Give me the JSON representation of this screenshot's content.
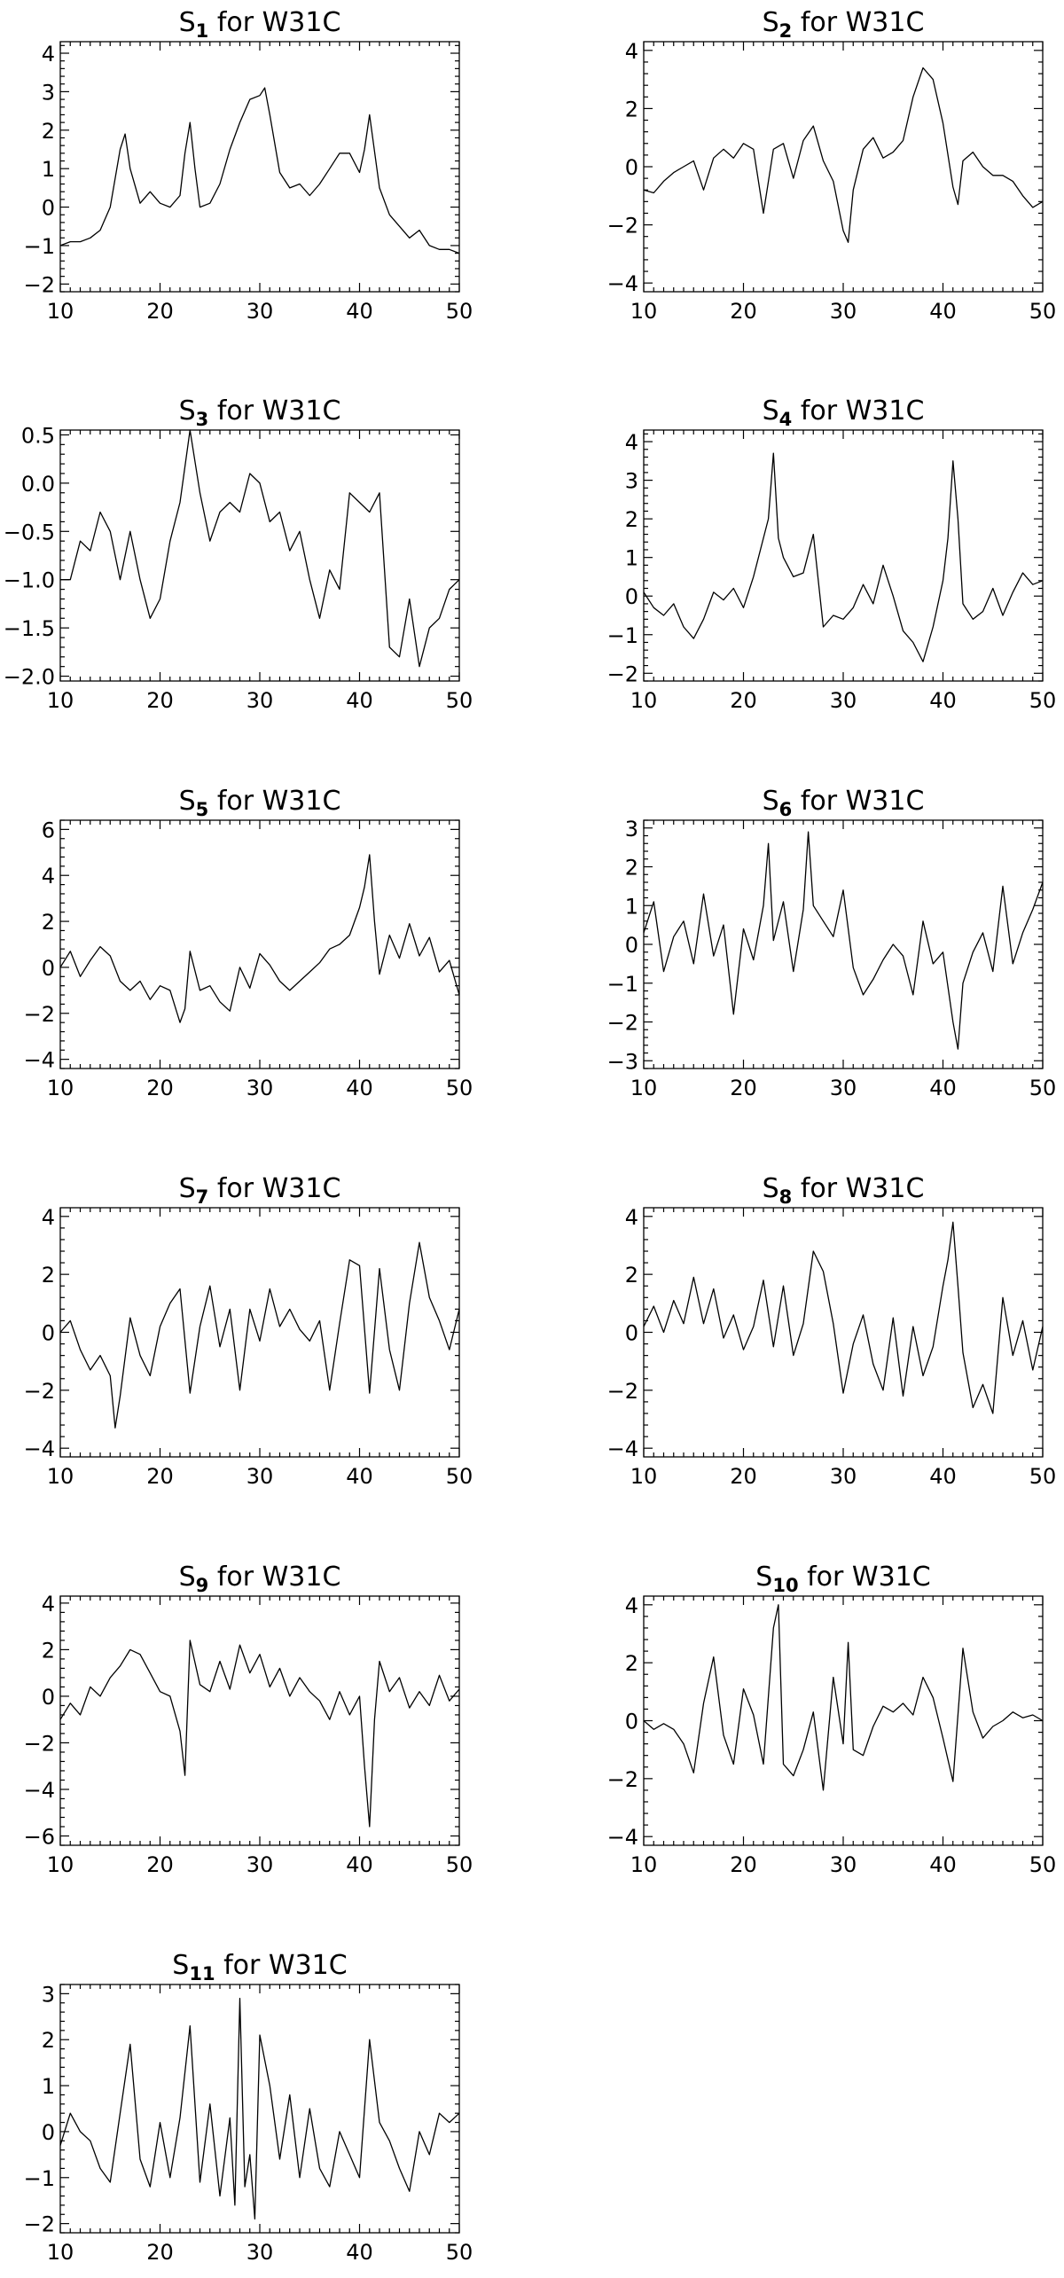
{
  "figure": {
    "background": "#ffffff",
    "line_color": "#000000"
  },
  "chart_data": [
    {
      "type": "line",
      "title_base": "S",
      "title_sub": "1",
      "title_rest": " for W31C",
      "xlim": [
        10,
        50
      ],
      "ylim": [
        -2.2,
        4.3
      ],
      "xticks": [
        10,
        20,
        30,
        40,
        50
      ],
      "yticks": [
        -2,
        -1,
        0,
        1,
        2,
        3,
        4
      ],
      "ytick_labels": [
        "−2",
        "−1",
        "0",
        "1",
        "2",
        "3",
        "4"
      ],
      "grid": false,
      "x": [
        10,
        11,
        12,
        13,
        14,
        15,
        16,
        16.5,
        17,
        18,
        19,
        20,
        21,
        22,
        22.5,
        23,
        23.5,
        24,
        25,
        26,
        27,
        28,
        29,
        30,
        30.5,
        31,
        32,
        33,
        34,
        35,
        36,
        37,
        38,
        39,
        40,
        40.5,
        41,
        42,
        43,
        44,
        45,
        46,
        47,
        48,
        49,
        50
      ],
      "y": [
        -1.0,
        -0.9,
        -0.9,
        -0.8,
        -0.6,
        0.0,
        1.5,
        1.9,
        1.0,
        0.1,
        0.4,
        0.1,
        0.0,
        0.3,
        1.4,
        2.2,
        1.0,
        0.0,
        0.1,
        0.6,
        1.5,
        2.2,
        2.8,
        2.9,
        3.1,
        2.4,
        0.9,
        0.5,
        0.6,
        0.3,
        0.6,
        1.0,
        1.4,
        1.4,
        0.9,
        1.5,
        2.4,
        0.5,
        -0.2,
        -0.5,
        -0.8,
        -0.6,
        -1.0,
        -1.1,
        -1.1,
        -1.2
      ]
    },
    {
      "type": "line",
      "title_base": "S",
      "title_sub": "2",
      "title_rest": " for W31C",
      "xlim": [
        10,
        50
      ],
      "ylim": [
        -4.3,
        4.3
      ],
      "xticks": [
        10,
        20,
        30,
        40,
        50
      ],
      "yticks": [
        -4,
        -2,
        0,
        2,
        4
      ],
      "ytick_labels": [
        "−4",
        "−2",
        "0",
        "2",
        "4"
      ],
      "grid": false,
      "x": [
        10,
        11,
        12,
        13,
        14,
        15,
        16,
        17,
        18,
        19,
        20,
        21,
        22,
        23,
        24,
        25,
        26,
        27,
        28,
        29,
        30,
        30.5,
        31,
        32,
        33,
        34,
        35,
        36,
        37,
        38,
        39,
        40,
        41,
        41.5,
        42,
        43,
        44,
        45,
        46,
        47,
        48,
        49,
        50
      ],
      "y": [
        -0.8,
        -0.9,
        -0.5,
        -0.2,
        0.0,
        0.2,
        -0.8,
        0.3,
        0.6,
        0.3,
        0.8,
        0.6,
        -1.6,
        0.6,
        0.8,
        -0.4,
        0.9,
        1.4,
        0.2,
        -0.5,
        -2.2,
        -2.6,
        -0.8,
        0.6,
        1.0,
        0.3,
        0.5,
        0.9,
        2.4,
        3.4,
        3.0,
        1.5,
        -0.7,
        -1.3,
        0.2,
        0.5,
        0.0,
        -0.3,
        -0.3,
        -0.5,
        -1.0,
        -1.4,
        -1.2
      ]
    },
    {
      "type": "line",
      "title_base": "S",
      "title_sub": "3",
      "title_rest": " for W31C",
      "xlim": [
        10,
        50
      ],
      "ylim": [
        -2.05,
        0.55
      ],
      "xticks": [
        10,
        20,
        30,
        40,
        50
      ],
      "yticks": [
        -2.0,
        -1.5,
        -1.0,
        -0.5,
        0.0,
        0.5
      ],
      "ytick_labels": [
        "−2.0",
        "−1.5",
        "−1.0",
        "−0.5",
        "0.0",
        "0.5"
      ],
      "grid": false,
      "x": [
        10,
        11,
        12,
        13,
        14,
        15,
        16,
        17,
        18,
        19,
        20,
        21,
        22,
        23,
        24,
        25,
        26,
        27,
        28,
        29,
        30,
        31,
        32,
        33,
        34,
        35,
        36,
        37,
        38,
        39,
        40,
        41,
        42,
        43,
        44,
        45,
        46,
        47,
        48,
        49,
        50
      ],
      "y": [
        -1.0,
        -1.0,
        -0.6,
        -0.7,
        -0.3,
        -0.5,
        -1.0,
        -0.5,
        -1.0,
        -1.4,
        -1.2,
        -0.6,
        -0.2,
        0.55,
        -0.1,
        -0.6,
        -0.3,
        -0.2,
        -0.3,
        0.1,
        0.0,
        -0.4,
        -0.3,
        -0.7,
        -0.5,
        -1.0,
        -1.4,
        -0.9,
        -1.1,
        -0.1,
        -0.2,
        -0.3,
        -0.1,
        -1.7,
        -1.8,
        -1.2,
        -1.9,
        -1.5,
        -1.4,
        -1.1,
        -1.0
      ]
    },
    {
      "type": "line",
      "title_base": "S",
      "title_sub": "4",
      "title_rest": " for W31C",
      "xlim": [
        10,
        50
      ],
      "ylim": [
        -2.2,
        4.3
      ],
      "xticks": [
        10,
        20,
        30,
        40,
        50
      ],
      "yticks": [
        -2,
        -1,
        0,
        1,
        2,
        3,
        4
      ],
      "ytick_labels": [
        "−2",
        "−1",
        "0",
        "1",
        "2",
        "3",
        "4"
      ],
      "grid": false,
      "x": [
        10,
        11,
        12,
        13,
        14,
        15,
        16,
        17,
        18,
        19,
        20,
        21,
        22,
        22.5,
        23,
        23.5,
        24,
        25,
        26,
        27,
        28,
        29,
        30,
        31,
        32,
        33,
        34,
        35,
        36,
        37,
        38,
        39,
        40,
        40.5,
        41,
        41.5,
        42,
        43,
        44,
        45,
        46,
        47,
        48,
        49,
        50
      ],
      "y": [
        0.1,
        -0.3,
        -0.5,
        -0.2,
        -0.8,
        -1.1,
        -0.6,
        0.1,
        -0.1,
        0.2,
        -0.3,
        0.5,
        1.5,
        2.0,
        3.7,
        1.5,
        1.0,
        0.5,
        0.6,
        1.6,
        -0.8,
        -0.5,
        -0.6,
        -0.3,
        0.3,
        -0.2,
        0.8,
        0.0,
        -0.9,
        -1.2,
        -1.7,
        -0.8,
        0.4,
        1.5,
        3.5,
        2.0,
        -0.2,
        -0.6,
        -0.4,
        0.2,
        -0.5,
        0.1,
        0.6,
        0.3,
        0.4
      ]
    },
    {
      "type": "line",
      "title_base": "S",
      "title_sub": "5",
      "title_rest": " for W31C",
      "xlim": [
        10,
        50
      ],
      "ylim": [
        -4.4,
        6.4
      ],
      "xticks": [
        10,
        20,
        30,
        40,
        50
      ],
      "yticks": [
        -4,
        -2,
        0,
        2,
        4,
        6
      ],
      "ytick_labels": [
        "−4",
        "−2",
        "0",
        "2",
        "4",
        "6"
      ],
      "grid": false,
      "x": [
        10,
        11,
        12,
        13,
        14,
        15,
        16,
        17,
        18,
        19,
        20,
        21,
        22,
        22.5,
        23,
        24,
        25,
        26,
        27,
        28,
        29,
        30,
        31,
        32,
        33,
        34,
        35,
        36,
        37,
        38,
        39,
        40,
        40.5,
        41,
        41.5,
        42,
        43,
        44,
        45,
        46,
        47,
        48,
        49,
        50
      ],
      "y": [
        0.0,
        0.7,
        -0.4,
        0.3,
        0.9,
        0.5,
        -0.6,
        -1.0,
        -0.6,
        -1.4,
        -0.8,
        -1.0,
        -2.4,
        -1.8,
        0.7,
        -1.0,
        -0.8,
        -1.5,
        -1.9,
        0.0,
        -0.9,
        0.6,
        0.1,
        -0.6,
        -1.0,
        -0.6,
        -0.2,
        0.2,
        0.8,
        1.0,
        1.4,
        2.6,
        3.5,
        4.9,
        2.0,
        -0.3,
        1.4,
        0.4,
        1.9,
        0.5,
        1.3,
        -0.2,
        0.3,
        -1.2
      ]
    },
    {
      "type": "line",
      "title_base": "S",
      "title_sub": "6",
      "title_rest": " for W31C",
      "xlim": [
        10,
        50
      ],
      "ylim": [
        -3.2,
        3.2
      ],
      "xticks": [
        10,
        20,
        30,
        40,
        50
      ],
      "yticks": [
        -3,
        -2,
        -1,
        0,
        1,
        2,
        3
      ],
      "ytick_labels": [
        "−3",
        "−2",
        "−1",
        "0",
        "1",
        "2",
        "3"
      ],
      "grid": false,
      "x": [
        10,
        11,
        12,
        13,
        14,
        15,
        16,
        17,
        18,
        19,
        20,
        21,
        22,
        22.5,
        23,
        24,
        25,
        26,
        26.5,
        27,
        28,
        29,
        30,
        31,
        32,
        33,
        34,
        35,
        36,
        37,
        38,
        39,
        40,
        41,
        41.5,
        42,
        43,
        44,
        45,
        46,
        47,
        48,
        49,
        50
      ],
      "y": [
        0.3,
        1.1,
        -0.7,
        0.2,
        0.6,
        -0.5,
        1.3,
        -0.3,
        0.5,
        -1.8,
        0.4,
        -0.4,
        1.0,
        2.6,
        0.1,
        1.1,
        -0.7,
        0.9,
        2.9,
        1.0,
        0.6,
        0.2,
        1.4,
        -0.6,
        -1.3,
        -0.9,
        -0.4,
        0.0,
        -0.3,
        -1.3,
        0.6,
        -0.5,
        -0.2,
        -2.0,
        -2.7,
        -1.0,
        -0.2,
        0.3,
        -0.7,
        1.5,
        -0.5,
        0.3,
        0.9,
        1.6
      ]
    },
    {
      "type": "line",
      "title_base": "S",
      "title_sub": "7",
      "title_rest": " for W31C",
      "xlim": [
        10,
        50
      ],
      "ylim": [
        -4.3,
        4.3
      ],
      "xticks": [
        10,
        20,
        30,
        40,
        50
      ],
      "yticks": [
        -4,
        -2,
        0,
        2,
        4
      ],
      "ytick_labels": [
        "−4",
        "−2",
        "0",
        "2",
        "4"
      ],
      "grid": false,
      "x": [
        10,
        11,
        12,
        13,
        14,
        15,
        15.5,
        16,
        17,
        18,
        19,
        20,
        21,
        22,
        23,
        24,
        25,
        26,
        27,
        28,
        29,
        30,
        31,
        32,
        33,
        34,
        35,
        36,
        37,
        38,
        39,
        40,
        41,
        42,
        43,
        44,
        45,
        46,
        47,
        48,
        49,
        50
      ],
      "y": [
        0.0,
        0.4,
        -0.6,
        -1.3,
        -0.8,
        -1.5,
        -3.3,
        -2.2,
        0.5,
        -0.8,
        -1.5,
        0.2,
        1.0,
        1.5,
        -2.1,
        0.2,
        1.6,
        -0.5,
        0.8,
        -2.0,
        0.8,
        -0.3,
        1.5,
        0.2,
        0.8,
        0.1,
        -0.3,
        0.4,
        -2.0,
        0.3,
        2.5,
        2.3,
        -2.1,
        2.2,
        -0.6,
        -2.0,
        1.0,
        3.1,
        1.2,
        0.4,
        -0.6,
        0.8
      ]
    },
    {
      "type": "line",
      "title_base": "S",
      "title_sub": "8",
      "title_rest": " for W31C",
      "xlim": [
        10,
        50
      ],
      "ylim": [
        -4.3,
        4.3
      ],
      "xticks": [
        10,
        20,
        30,
        40,
        50
      ],
      "yticks": [
        -4,
        -2,
        0,
        2,
        4
      ],
      "ytick_labels": [
        "−4",
        "−2",
        "0",
        "2",
        "4"
      ],
      "grid": false,
      "x": [
        10,
        11,
        12,
        13,
        14,
        15,
        16,
        17,
        18,
        19,
        20,
        21,
        22,
        23,
        24,
        25,
        26,
        27,
        28,
        29,
        30,
        31,
        32,
        33,
        34,
        35,
        36,
        37,
        38,
        39,
        40,
        40.5,
        41,
        41.5,
        42,
        43,
        44,
        45,
        46,
        47,
        48,
        49,
        50
      ],
      "y": [
        0.2,
        0.9,
        0.0,
        1.1,
        0.3,
        1.9,
        0.3,
        1.5,
        -0.2,
        0.6,
        -0.6,
        0.2,
        1.8,
        -0.5,
        1.6,
        -0.8,
        0.3,
        2.8,
        2.1,
        0.3,
        -2.1,
        -0.4,
        0.6,
        -1.1,
        -2.0,
        0.5,
        -2.2,
        0.2,
        -1.5,
        -0.5,
        1.6,
        2.5,
        3.8,
        1.6,
        -0.7,
        -2.6,
        -1.8,
        -2.8,
        1.2,
        -0.8,
        0.4,
        -1.3,
        0.2
      ]
    },
    {
      "type": "line",
      "title_base": "S",
      "title_sub": "9",
      "title_rest": " for W31C",
      "xlim": [
        10,
        50
      ],
      "ylim": [
        -6.4,
        4.3
      ],
      "xticks": [
        10,
        20,
        30,
        40,
        50
      ],
      "yticks": [
        -6,
        -4,
        -2,
        0,
        2,
        4
      ],
      "ytick_labels": [
        "−6",
        "−4",
        "−2",
        "0",
        "2",
        "4"
      ],
      "grid": false,
      "x": [
        10,
        11,
        12,
        13,
        14,
        15,
        16,
        17,
        18,
        19,
        20,
        21,
        22,
        22.5,
        23,
        24,
        25,
        26,
        27,
        28,
        29,
        30,
        31,
        32,
        33,
        34,
        35,
        36,
        37,
        38,
        39,
        40,
        40.5,
        41,
        41.5,
        42,
        43,
        44,
        45,
        46,
        47,
        48,
        49,
        50
      ],
      "y": [
        -1.0,
        -0.3,
        -0.8,
        0.4,
        0.0,
        0.8,
        1.3,
        2.0,
        1.8,
        1.0,
        0.2,
        0.0,
        -1.5,
        -3.4,
        2.4,
        0.5,
        0.2,
        1.5,
        0.3,
        2.2,
        1.0,
        1.8,
        0.4,
        1.2,
        0.0,
        0.8,
        0.2,
        -0.2,
        -1.0,
        0.2,
        -0.8,
        0.0,
        -3.0,
        -5.6,
        -1.0,
        1.5,
        0.2,
        0.8,
        -0.5,
        0.2,
        -0.4,
        0.9,
        -0.2,
        0.3
      ]
    },
    {
      "type": "line",
      "title_base": "S",
      "title_sub": "10",
      "title_rest": " for W31C",
      "xlim": [
        10,
        50
      ],
      "ylim": [
        -4.3,
        4.3
      ],
      "xticks": [
        10,
        20,
        30,
        40,
        50
      ],
      "yticks": [
        -4,
        -2,
        0,
        2,
        4
      ],
      "ytick_labels": [
        "−4",
        "−2",
        "0",
        "2",
        "4"
      ],
      "grid": false,
      "x": [
        10,
        11,
        12,
        13,
        14,
        15,
        16,
        17,
        18,
        19,
        20,
        21,
        22,
        23,
        23.5,
        24,
        25,
        26,
        27,
        28,
        29,
        30,
        30.5,
        31,
        32,
        33,
        34,
        35,
        36,
        37,
        38,
        39,
        40,
        41,
        42,
        43,
        44,
        45,
        46,
        47,
        48,
        49,
        50
      ],
      "y": [
        0.0,
        -0.3,
        -0.1,
        -0.3,
        -0.8,
        -1.8,
        0.6,
        2.2,
        -0.5,
        -1.5,
        1.1,
        0.2,
        -1.5,
        3.2,
        4.0,
        -1.5,
        -1.9,
        -1.0,
        0.3,
        -2.4,
        1.5,
        -0.8,
        2.7,
        -1.0,
        -1.2,
        -0.2,
        0.5,
        0.3,
        0.6,
        0.2,
        1.5,
        0.8,
        -0.6,
        -2.1,
        2.5,
        0.3,
        -0.6,
        -0.2,
        0.0,
        0.3,
        0.1,
        0.2,
        0.0
      ]
    },
    {
      "type": "line",
      "title_base": "S",
      "title_sub": "11",
      "title_rest": " for W31C",
      "xlim": [
        10,
        50
      ],
      "ylim": [
        -2.2,
        3.2
      ],
      "xticks": [
        10,
        20,
        30,
        40,
        50
      ],
      "yticks": [
        -2,
        -1,
        0,
        1,
        2,
        3
      ],
      "ytick_labels": [
        "−2",
        "−1",
        "0",
        "1",
        "2",
        "3"
      ],
      "grid": false,
      "x": [
        10,
        11,
        12,
        13,
        14,
        15,
        16,
        17,
        18,
        19,
        20,
        21,
        22,
        23,
        24,
        25,
        26,
        27,
        27.5,
        28,
        28.5,
        29,
        29.5,
        30,
        31,
        32,
        33,
        34,
        35,
        36,
        37,
        38,
        39,
        40,
        41,
        42,
        43,
        44,
        45,
        46,
        47,
        48,
        49,
        50
      ],
      "y": [
        -0.3,
        0.4,
        0.0,
        -0.2,
        -0.8,
        -1.1,
        0.4,
        1.9,
        -0.6,
        -1.2,
        0.2,
        -1.0,
        0.3,
        2.3,
        -1.1,
        0.6,
        -1.4,
        0.3,
        -1.6,
        2.9,
        -1.2,
        -0.5,
        -1.9,
        2.1,
        1.0,
        -0.6,
        0.8,
        -1.0,
        0.5,
        -0.8,
        -1.2,
        0.0,
        -0.5,
        -1.0,
        2.0,
        0.2,
        -0.2,
        -0.8,
        -1.3,
        0.0,
        -0.5,
        0.4,
        0.2,
        0.4
      ]
    }
  ]
}
